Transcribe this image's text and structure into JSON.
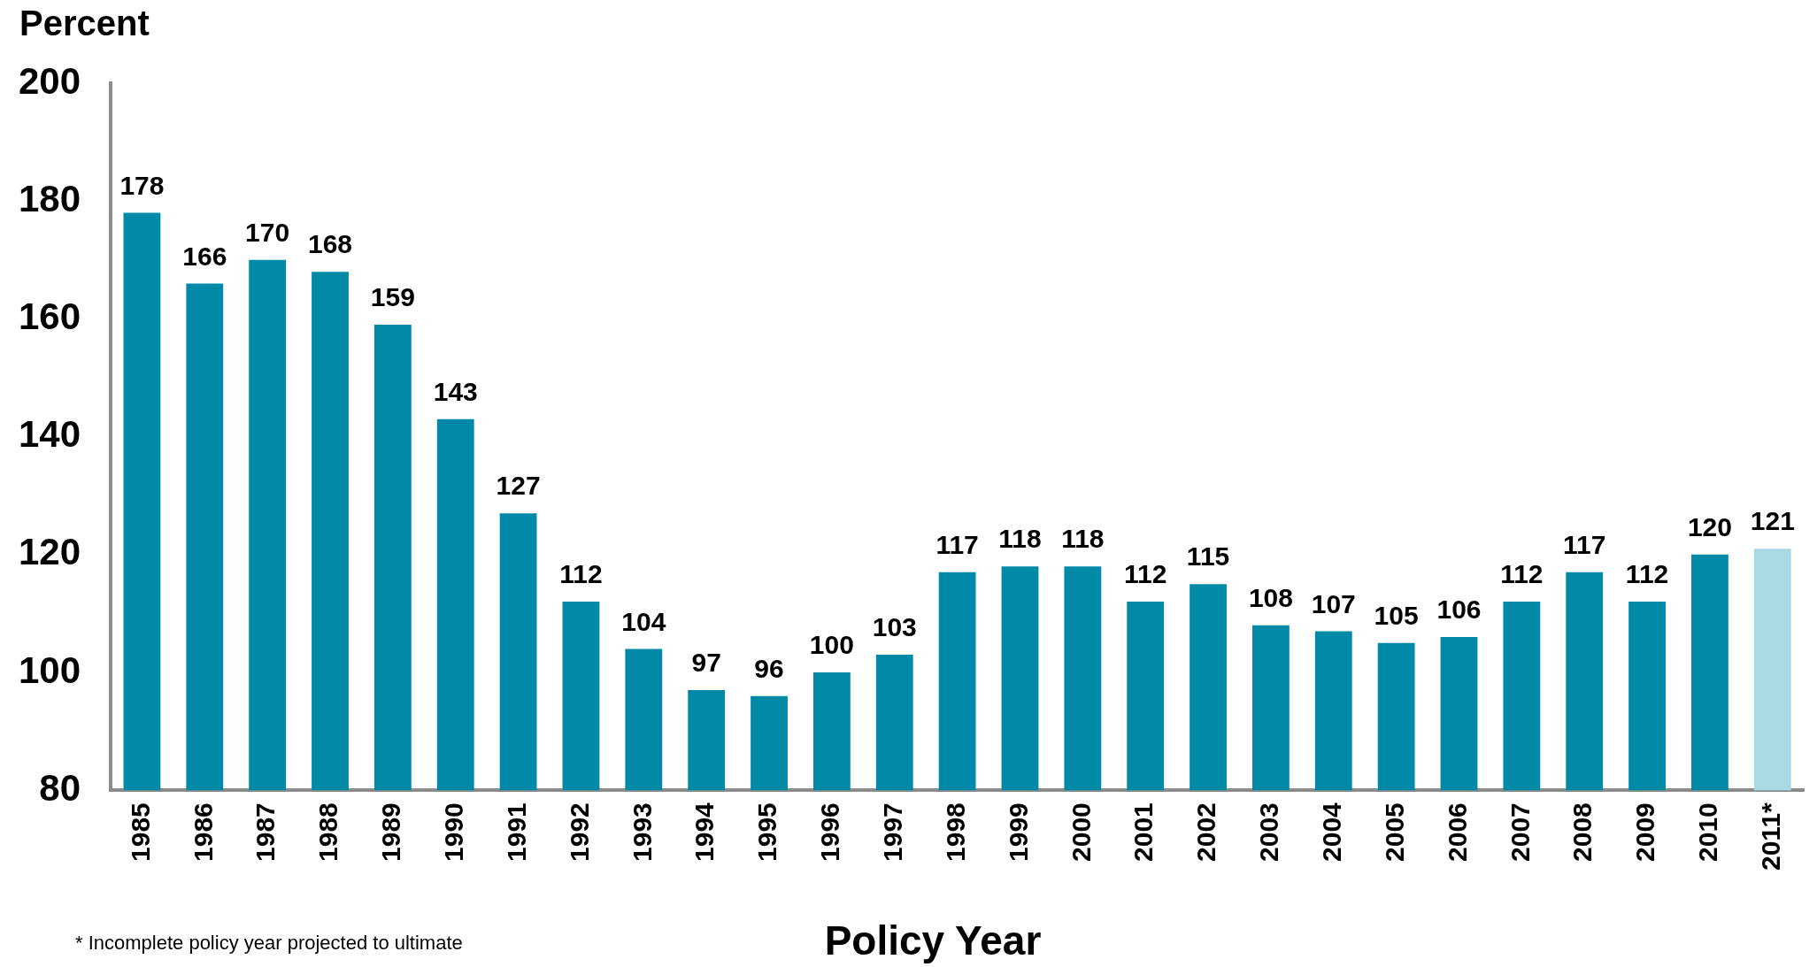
{
  "chart_data": {
    "type": "bar",
    "ylabel": "Percent",
    "xlabel": "Policy Year",
    "annotations": [
      "* Incomplete policy year projected to ultimate"
    ],
    "categories": [
      "1985",
      "1986",
      "1987",
      "1988",
      "1989",
      "1990",
      "1991",
      "1992",
      "1993",
      "1994",
      "1995",
      "1996",
      "1997",
      "1998",
      "1999",
      "2000",
      "2001",
      "2002",
      "2003",
      "2004",
      "2005",
      "2006",
      "2007",
      "2008",
      "2009",
      "2010",
      "2011*"
    ],
    "values": [
      178,
      166,
      170,
      168,
      159,
      143,
      127,
      112,
      104,
      97,
      96,
      100,
      103,
      117,
      118,
      118,
      112,
      115,
      108,
      107,
      105,
      106,
      112,
      117,
      112,
      120,
      121
    ],
    "colors": [
      "#008aa8",
      "#008aa8",
      "#008aa8",
      "#008aa8",
      "#008aa8",
      "#008aa8",
      "#008aa8",
      "#008aa8",
      "#008aa8",
      "#008aa8",
      "#008aa8",
      "#008aa8",
      "#008aa8",
      "#008aa8",
      "#008aa8",
      "#008aa8",
      "#008aa8",
      "#008aa8",
      "#008aa8",
      "#008aa8",
      "#008aa8",
      "#008aa8",
      "#008aa8",
      "#008aa8",
      "#008aa8",
      "#008aa8",
      "#a9d9e3"
    ],
    "ylim": [
      80,
      200
    ],
    "yticks": [
      80,
      100,
      120,
      140,
      160,
      180,
      200
    ],
    "grid": false,
    "legend": false,
    "data_labels": true
  }
}
